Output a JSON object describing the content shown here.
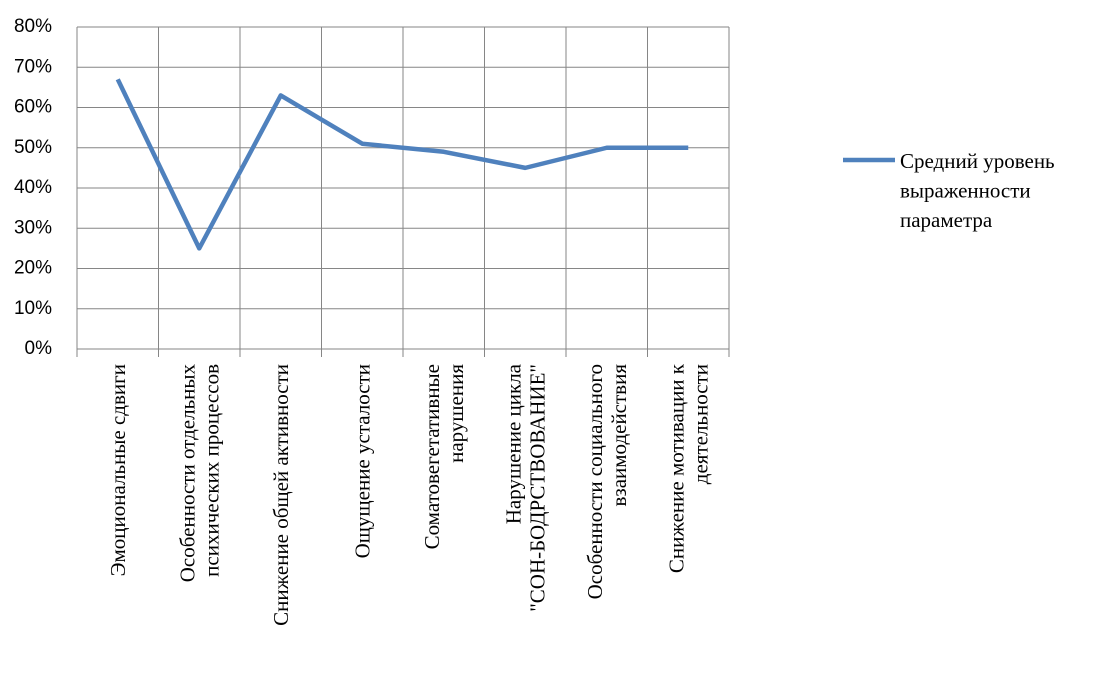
{
  "chart_data": {
    "type": "line",
    "categories": [
      "Эмоциональные сдвиги",
      "Особенности отдельных психических процессов",
      "Снижение общей активности",
      "Ощущение усталости",
      "Соматовегетативные нарушения",
      "Нарушение цикла \"СОН-БОДРСТВОВАНИЕ\"",
      "Особенности социального взаимодействия",
      "Снижение мотивации к деятельности"
    ],
    "series": [
      {
        "name": "Средний уровень выраженности параметра",
        "color": "#4f81bd",
        "values": [
          67,
          25,
          63,
          51,
          49,
          45,
          50,
          50
        ]
      }
    ],
    "ylim": [
      0,
      80
    ],
    "yticks": [
      {
        "value": 0,
        "label": "0%"
      },
      {
        "value": 10,
        "label": "10%"
      },
      {
        "value": 20,
        "label": "20%"
      },
      {
        "value": 30,
        "label": "30%"
      },
      {
        "value": 40,
        "label": "40%"
      },
      {
        "value": 50,
        "label": "50%"
      },
      {
        "value": 60,
        "label": "60%"
      },
      {
        "value": 70,
        "label": "70%"
      },
      {
        "value": 80,
        "label": "80%"
      }
    ],
    "grid": true,
    "legend": "right"
  }
}
